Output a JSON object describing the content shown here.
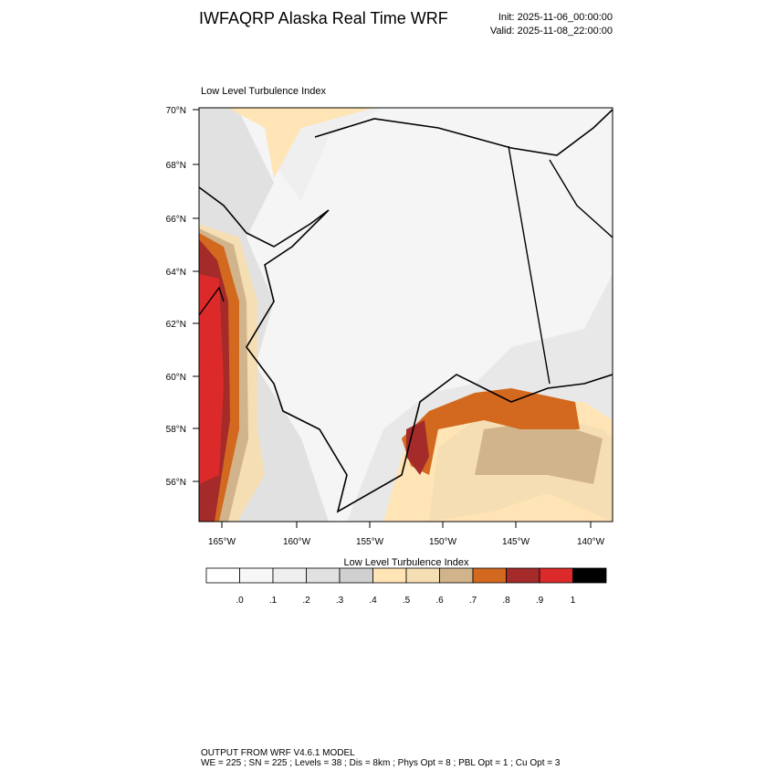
{
  "header": {
    "title": "IWFAQRP Alaska Real Time WRF",
    "init": "Init: 2025-11-06_00:00:00",
    "valid": "Valid: 2025-11-08_22:00:00"
  },
  "map": {
    "subtitle": "Low Level Turbulence Index",
    "lat_labels": [
      "70°N",
      "68°N",
      "66°N",
      "64°N",
      "62°N",
      "60°N",
      "58°N",
      "56°N"
    ],
    "lon_labels": [
      "165°W",
      "160°W",
      "155°W",
      "150°W",
      "145°W",
      "140°W"
    ]
  },
  "colorbar": {
    "title": "Low Level Turbulence Index",
    "colors": [
      "#ffffff",
      "#f7f7f7",
      "#efefef",
      "#e1e1e1",
      "#d0d0d0",
      "#ffe4b5",
      "#f5deb3",
      "#d2b48c",
      "#d2691e",
      "#a52a2a",
      "#dc2a2a",
      "#000000"
    ],
    "labels": [
      ".0",
      ".1",
      ".2",
      ".3",
      ".4",
      ".5",
      ".6",
      ".7",
      ".8",
      ".9",
      "1"
    ]
  },
  "footer": {
    "line1": "OUTPUT FROM WRF V4.6.1 MODEL",
    "line2": "WE = 225 ; SN = 225 ; Levels = 38 ; Dis = 8km ; Phys Opt = 8 ; PBL Opt = 1 ; Cu Opt = 3"
  }
}
